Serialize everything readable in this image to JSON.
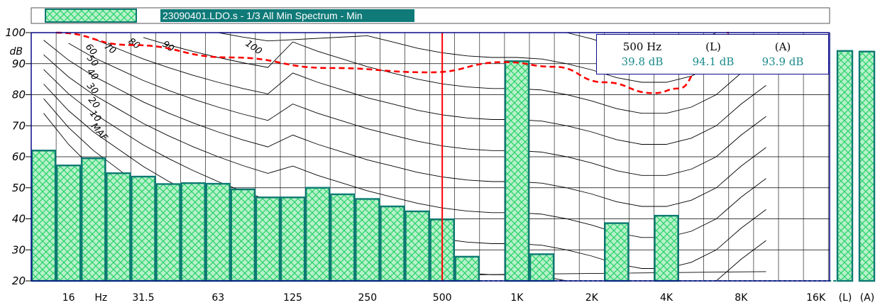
{
  "colors": {
    "bar_fill": "#b8f0cc",
    "bar_hatch": "#2bd46a",
    "bar_edge": "#0c7a72",
    "legend_fill": "#0f7a78",
    "loudness_curve": "#000000",
    "cursor": "#ff0000",
    "threshold": "#ff0000",
    "axis": "#0a0a8a",
    "grid": "#000000",
    "info_value": "#1a8a8a"
  },
  "legend": {
    "label": "23090401.LDO.s - 1/3 All Min Spectrum - Min"
  },
  "info": {
    "cursor_label": "500 Hz",
    "cursor_value": "39.8 dB",
    "l_label": "(L)",
    "l_value": "94.1 dB",
    "a_label": "(A)",
    "a_value": "93.9 dB"
  },
  "chart_data": {
    "type": "bar",
    "title": "",
    "ylabel": "dB",
    "ylim": [
      20,
      100
    ],
    "yticks": [
      20,
      30,
      40,
      50,
      60,
      70,
      80,
      90,
      100
    ],
    "x_tick_labels": [
      "16",
      "Hz",
      "31.5",
      "63",
      "125",
      "250",
      "500",
      "1K",
      "2K",
      "4K",
      "8K",
      "16K"
    ],
    "bands": [
      "12.5",
      "16",
      "20",
      "25",
      "31.5",
      "40",
      "50",
      "63",
      "80",
      "100",
      "125",
      "160",
      "200",
      "250",
      "315",
      "400",
      "500",
      "630",
      "800",
      "1K",
      "1.25K",
      "1.6K",
      "2K",
      "2.5K",
      "3.15K",
      "4K",
      "5K",
      "6.3K",
      "8K",
      "10K",
      "12.5K",
      "16K",
      "20K"
    ],
    "values": [
      62.0,
      57.2,
      59.5,
      54.7,
      53.6,
      51.2,
      51.5,
      51.3,
      49.5,
      46.9,
      46.9,
      50.0,
      47.9,
      46.4,
      44.0,
      42.4,
      39.8,
      27.8,
      20.0,
      90.8,
      28.6,
      20.0,
      20.0,
      38.6,
      20.0,
      41.0,
      20.0,
      20.0,
      20.0,
      20.0,
      20.0,
      20.0,
      20.0
    ],
    "overall": [
      {
        "name": "(L)",
        "value": 94.1
      },
      {
        "name": "(A)",
        "value": 93.9
      }
    ],
    "cursor_band": "500",
    "cursor_value": 39.8,
    "loudness_contours": {
      "labels": [
        "MAF",
        "10",
        "20",
        "30",
        "40",
        "50",
        "60",
        "70",
        "80",
        "90",
        "100"
      ],
      "phon_levels": [
        0,
        10,
        20,
        30,
        40,
        50,
        60,
        70,
        80,
        90,
        100
      ]
    },
    "threshold_line": {
      "style": "dashed",
      "points": [
        [
          1,
          100
        ],
        [
          4,
          96
        ],
        [
          8,
          92
        ],
        [
          12,
          88.6
        ],
        [
          16,
          87.2
        ],
        [
          19,
          90.5
        ],
        [
          21,
          89
        ],
        [
          23,
          84
        ],
        [
          25,
          80.5
        ],
        [
          26,
          82
        ],
        [
          27,
          90
        ],
        [
          28,
          100
        ]
      ]
    },
    "grid": true
  }
}
